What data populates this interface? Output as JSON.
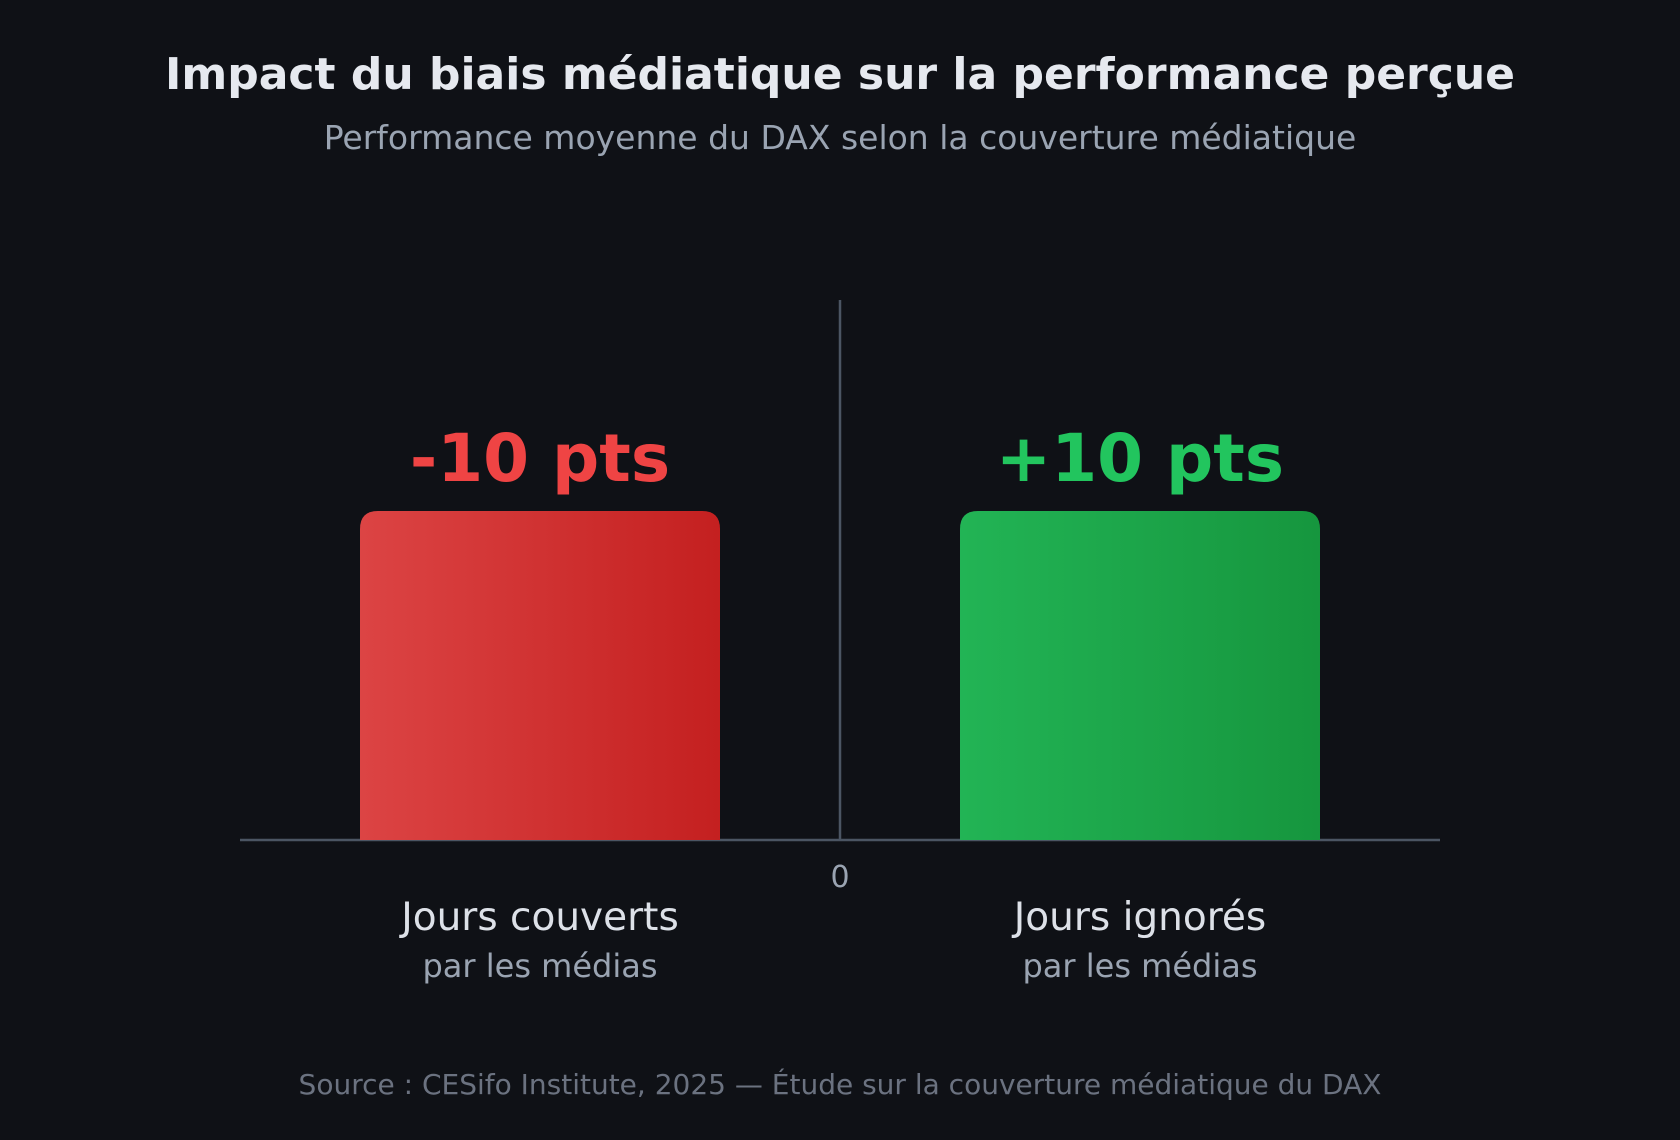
{
  "chart_data": {
    "type": "bar",
    "title": "Impact du biais médiatique sur la performance perçue",
    "subtitle": "Performance moyenne du DAX selon la couverture médiatique",
    "categories": [
      "Jours couverts",
      "Jours ignorés"
    ],
    "category_sublabels": [
      "par les médias",
      "par les médias"
    ],
    "values": [
      -10,
      10
    ],
    "data_labels": [
      "-10 pts",
      "+10 pts"
    ],
    "baseline_tick": "0",
    "xlabel": "",
    "ylabel": "",
    "grid": false,
    "source": "Source : CESifo Institute, 2025 — Étude sur la couverture médiatique du DAX",
    "colors": {
      "background": "#0f1116",
      "negative_start": "#dc4444",
      "negative_end": "#c42020",
      "negative_label": "#ef4444",
      "positive_start": "#22b455",
      "positive_end": "#16963e",
      "positive_label": "#22c55e",
      "title": "#e6e9ef",
      "subtitle": "#9aa4b2",
      "axis": "#4b5563",
      "category_label": "#dde1e8",
      "category_sublabel": "#9aa4b2",
      "source": "#6b7280"
    }
  }
}
